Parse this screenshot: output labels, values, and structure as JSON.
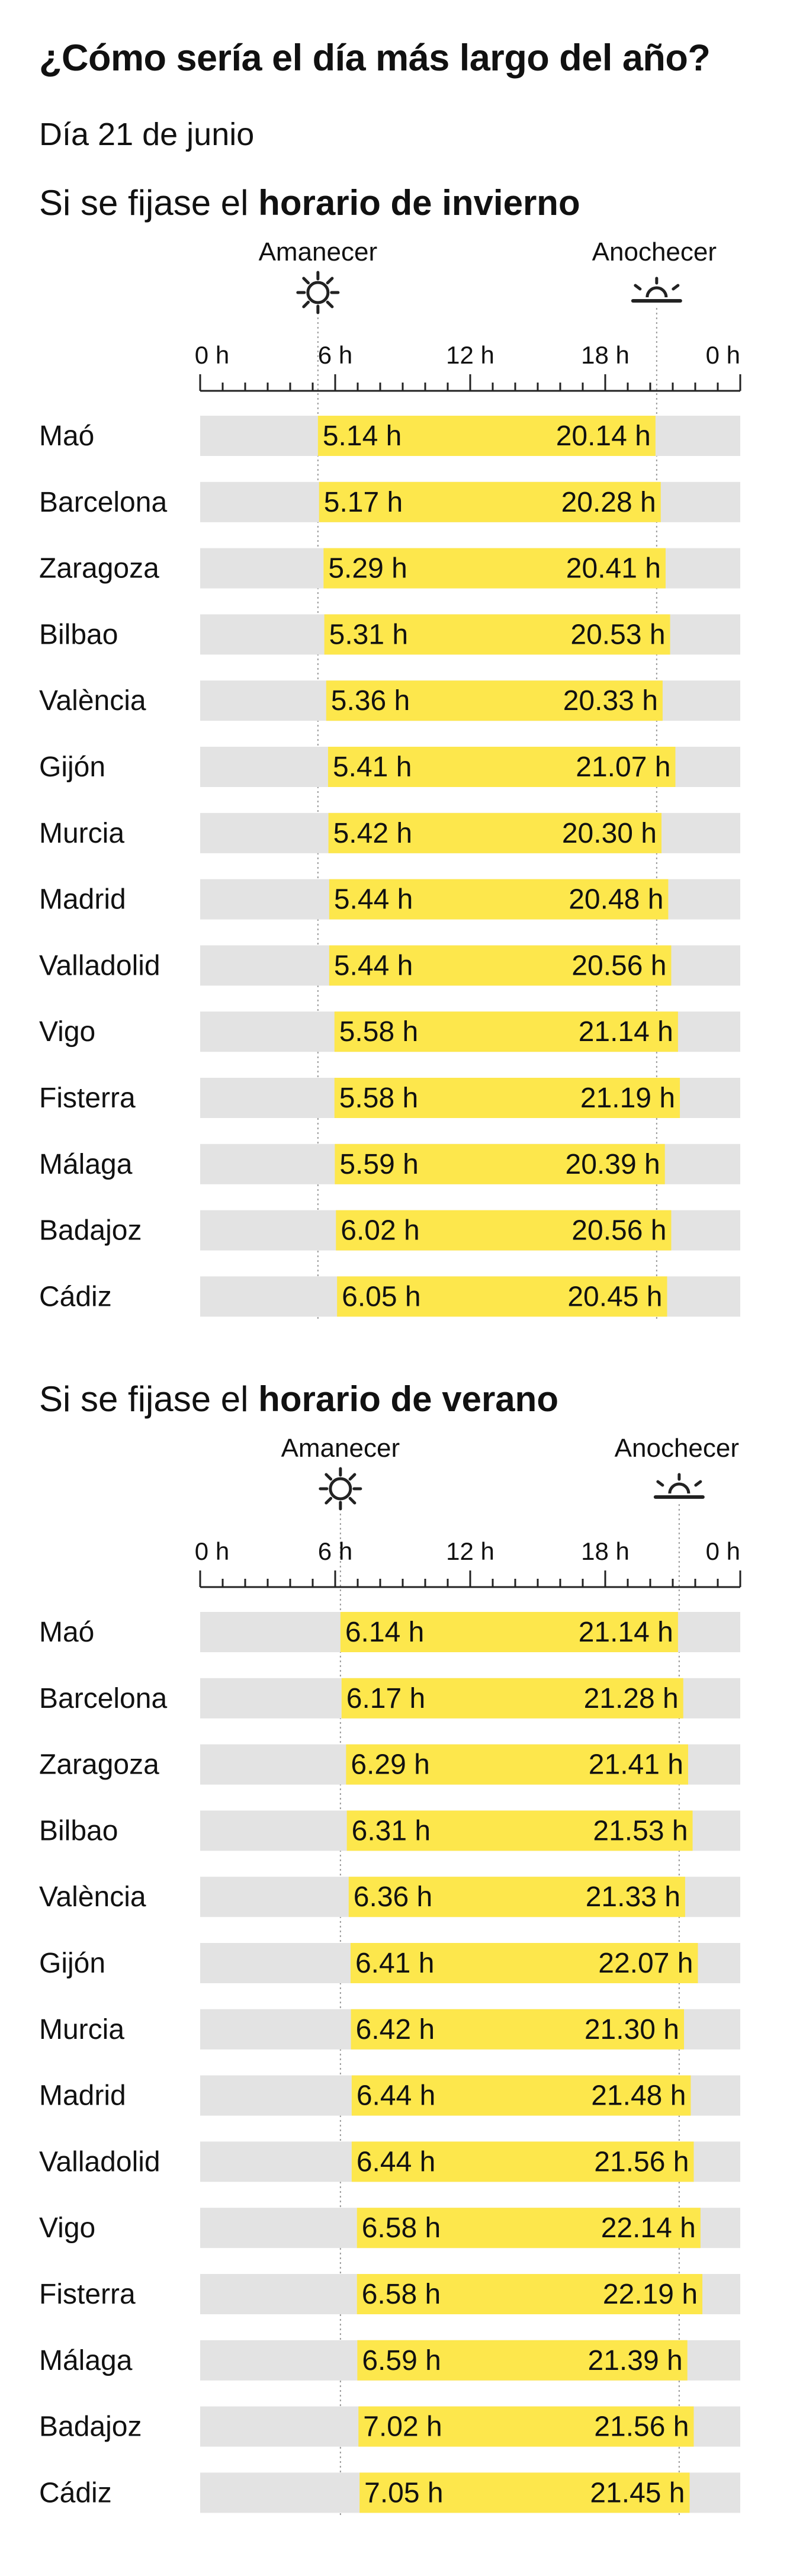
{
  "header": {
    "title": "¿Cómo sería el día más largo del año?",
    "subtitle": "Día 21 de junio"
  },
  "colors": {
    "bar_background": "#e3e3e3",
    "daylight": "#fde74c",
    "text": "#111111",
    "axis": "#222222",
    "guide_line": "#9a9a9a"
  },
  "chart_data": [
    {
      "type": "bar",
      "title_prefix": "Si se fijase el ",
      "title_bold": "horario de invierno",
      "sunrise_label": "Amanecer",
      "sunset_label": "Anochecer",
      "sunrise_icon": "sun-icon",
      "sunset_icon": "sunset-icon",
      "xlim": [
        0,
        24
      ],
      "x_ticks": [
        0,
        6,
        12,
        18,
        24
      ],
      "x_tick_labels": [
        "0 h",
        "6 h",
        "12 h",
        "18 h",
        "0 h"
      ],
      "categories": [
        "Maó",
        "Barcelona",
        "Zaragoza",
        "Bilbao",
        "València",
        "Gijón",
        "Murcia",
        "Madrid",
        "Valladolid",
        "Vigo",
        "Fisterra",
        "Málaga",
        "Badajoz",
        "Cádiz"
      ],
      "sunrise": [
        5.233,
        5.283,
        5.483,
        5.517,
        5.6,
        5.683,
        5.7,
        5.733,
        5.733,
        5.967,
        5.967,
        5.983,
        6.033,
        6.083
      ],
      "sunset": [
        20.233,
        20.467,
        20.683,
        20.883,
        20.55,
        21.117,
        20.5,
        20.8,
        20.933,
        21.233,
        21.317,
        20.65,
        20.933,
        20.75
      ],
      "sunrise_labels": [
        "5.14 h",
        "5.17 h",
        "5.29 h",
        "5.31 h",
        "5.36 h",
        "5.41 h",
        "5.42 h",
        "5.44 h",
        "5.44 h",
        "5.58 h",
        "5.58 h",
        "5.59 h",
        "6.02 h",
        "6.05 h"
      ],
      "sunset_labels": [
        "20.14 h",
        "20.28 h",
        "20.41 h",
        "20.53 h",
        "20.33 h",
        "21.07 h",
        "20.30 h",
        "20.48 h",
        "20.56 h",
        "21.14 h",
        "21.19 h",
        "20.39 h",
        "20.56 h",
        "20.45 h"
      ]
    },
    {
      "type": "bar",
      "title_prefix": "Si se fijase el ",
      "title_bold": "horario de verano",
      "sunrise_label": "Amanecer",
      "sunset_label": "Anochecer",
      "sunrise_icon": "sun-icon",
      "sunset_icon": "sunset-icon",
      "xlim": [
        0,
        24
      ],
      "x_ticks": [
        0,
        6,
        12,
        18,
        24
      ],
      "x_tick_labels": [
        "0 h",
        "6 h",
        "12 h",
        "18 h",
        "0 h"
      ],
      "categories": [
        "Maó",
        "Barcelona",
        "Zaragoza",
        "Bilbao",
        "València",
        "Gijón",
        "Murcia",
        "Madrid",
        "Valladolid",
        "Vigo",
        "Fisterra",
        "Málaga",
        "Badajoz",
        "Cádiz"
      ],
      "sunrise": [
        6.233,
        6.283,
        6.483,
        6.517,
        6.6,
        6.683,
        6.7,
        6.733,
        6.733,
        6.967,
        6.967,
        6.983,
        7.033,
        7.083
      ],
      "sunset": [
        21.233,
        21.467,
        21.683,
        21.883,
        21.55,
        22.117,
        21.5,
        21.8,
        21.933,
        22.233,
        22.317,
        21.65,
        21.933,
        21.75
      ],
      "sunrise_labels": [
        "6.14 h",
        "6.17 h",
        "6.29 h",
        "6.31 h",
        "6.36 h",
        "6.41 h",
        "6.42 h",
        "6.44 h",
        "6.44 h",
        "6.58 h",
        "6.58 h",
        "6.59 h",
        "7.02 h",
        "7.05 h"
      ],
      "sunset_labels": [
        "21.14 h",
        "21.28 h",
        "21.41 h",
        "21.53 h",
        "21.33 h",
        "22.07 h",
        "21.30 h",
        "21.48 h",
        "21.56 h",
        "22.14 h",
        "22.19 h",
        "21.39 h",
        "21.56 h",
        "21.45 h"
      ]
    }
  ]
}
